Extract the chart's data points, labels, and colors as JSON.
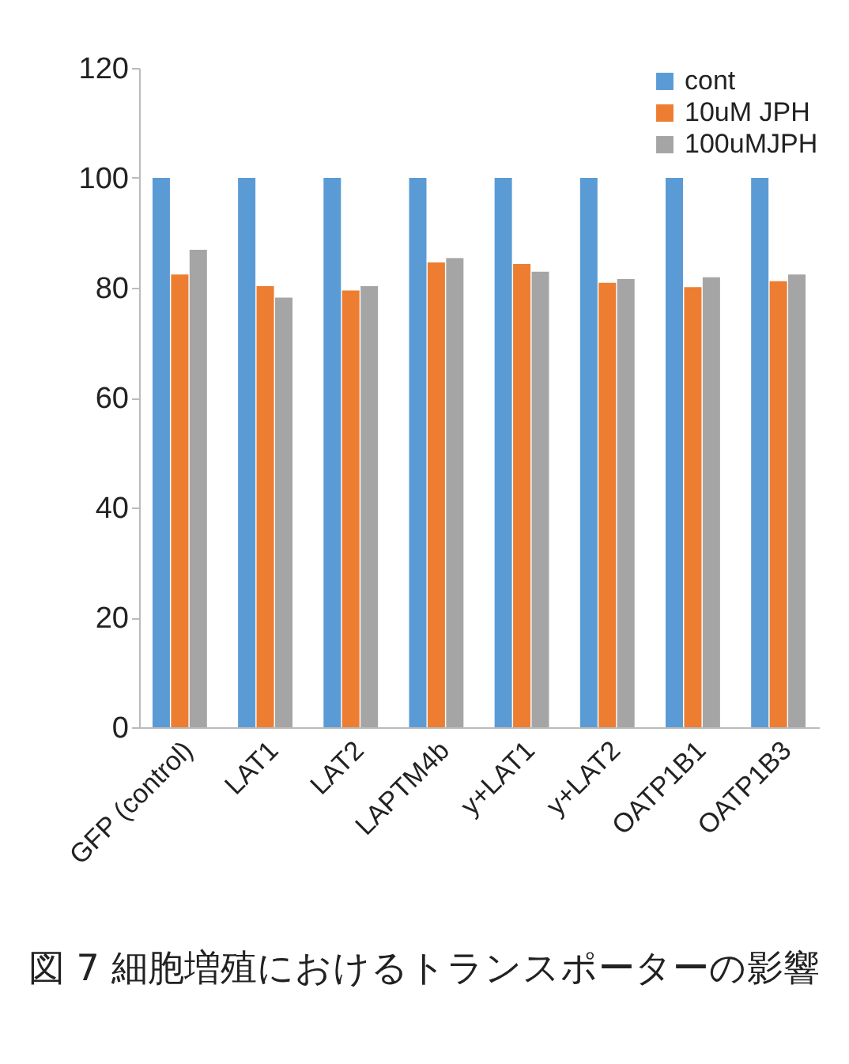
{
  "chart_data": {
    "type": "bar",
    "categories": [
      "GFP (control)",
      "LAT1",
      "LAT2",
      "LAPTM4b",
      "y+LAT1",
      "y+LAT2",
      "OATP1B1",
      "OATP1B3"
    ],
    "series": [
      {
        "name": "cont",
        "color": "#5b9bd5",
        "values": [
          100,
          100,
          100,
          100,
          100,
          100,
          100,
          100
        ]
      },
      {
        "name": "10uM JPH",
        "color": "#ed7d31",
        "values": [
          82.4,
          80.3,
          79.5,
          84.6,
          84.3,
          80.9,
          80.1,
          81.2
        ]
      },
      {
        "name": "100uMJPH",
        "color": "#a5a5a5",
        "values": [
          86.9,
          78.2,
          80.3,
          85.4,
          82.9,
          81.6,
          81.9,
          82.4
        ]
      }
    ],
    "ylim": [
      0,
      120
    ],
    "yticks": [
      0,
      20,
      40,
      60,
      80,
      100,
      120
    ],
    "grid": false,
    "legend": "top right",
    "annotations": [
      "図 7 細胞増殖におけるトランスポーターの影響"
    ]
  }
}
